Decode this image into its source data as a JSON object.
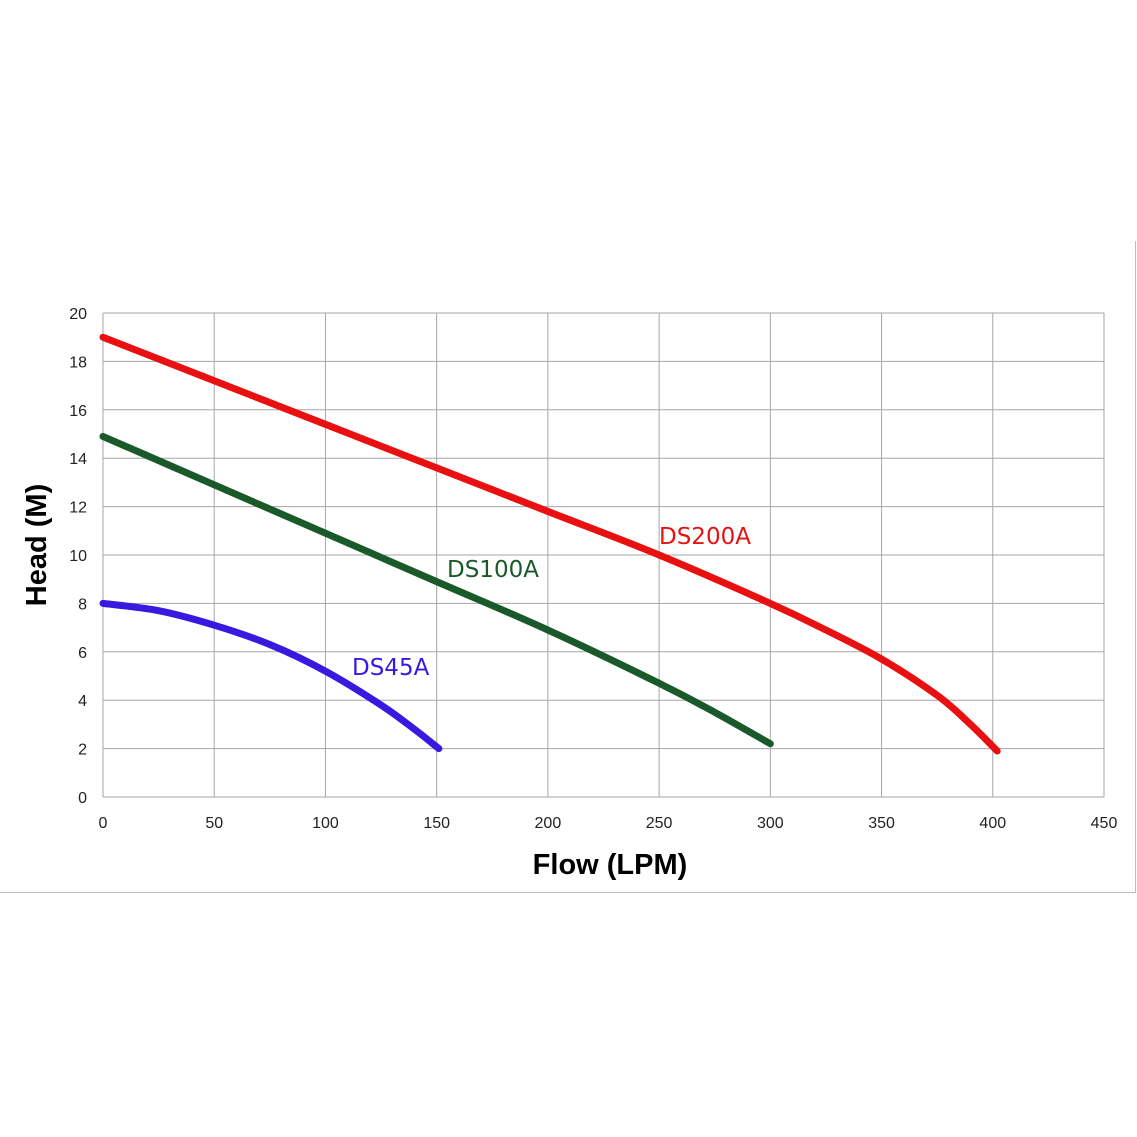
{
  "chart_data": {
    "type": "line",
    "xlabel": "Flow (LPM)",
    "ylabel": "Head (M)",
    "xlim": [
      0,
      450
    ],
    "ylim": [
      0,
      20
    ],
    "xticks": [
      0,
      50,
      100,
      150,
      200,
      250,
      300,
      350,
      400,
      450
    ],
    "yticks": [
      0,
      2,
      4,
      6,
      8,
      10,
      12,
      14,
      16,
      18,
      20
    ],
    "grid": true,
    "legend": "inline-labels",
    "series": [
      {
        "name": "DS200A",
        "color": "#e81010",
        "x": [
          0,
          50,
          100,
          150,
          200,
          250,
          300,
          325,
          350,
          375,
          390,
          402
        ],
        "y": [
          19,
          17.2,
          15.4,
          13.6,
          11.8,
          10.0,
          8.0,
          6.9,
          5.7,
          4.2,
          3.0,
          1.9
        ]
      },
      {
        "name": "DS100A",
        "color": "#1a5a2a",
        "x": [
          0,
          50,
          100,
          150,
          200,
          250,
          275,
          300
        ],
        "y": [
          14.9,
          12.9,
          10.9,
          8.9,
          6.9,
          4.7,
          3.5,
          2.2
        ]
      },
      {
        "name": "DS45A",
        "color": "#3a18e0",
        "x": [
          0,
          25,
          50,
          75,
          100,
          125,
          140,
          151
        ],
        "y": [
          8.0,
          7.7,
          7.1,
          6.3,
          5.2,
          3.8,
          2.8,
          2.0
        ]
      }
    ]
  }
}
